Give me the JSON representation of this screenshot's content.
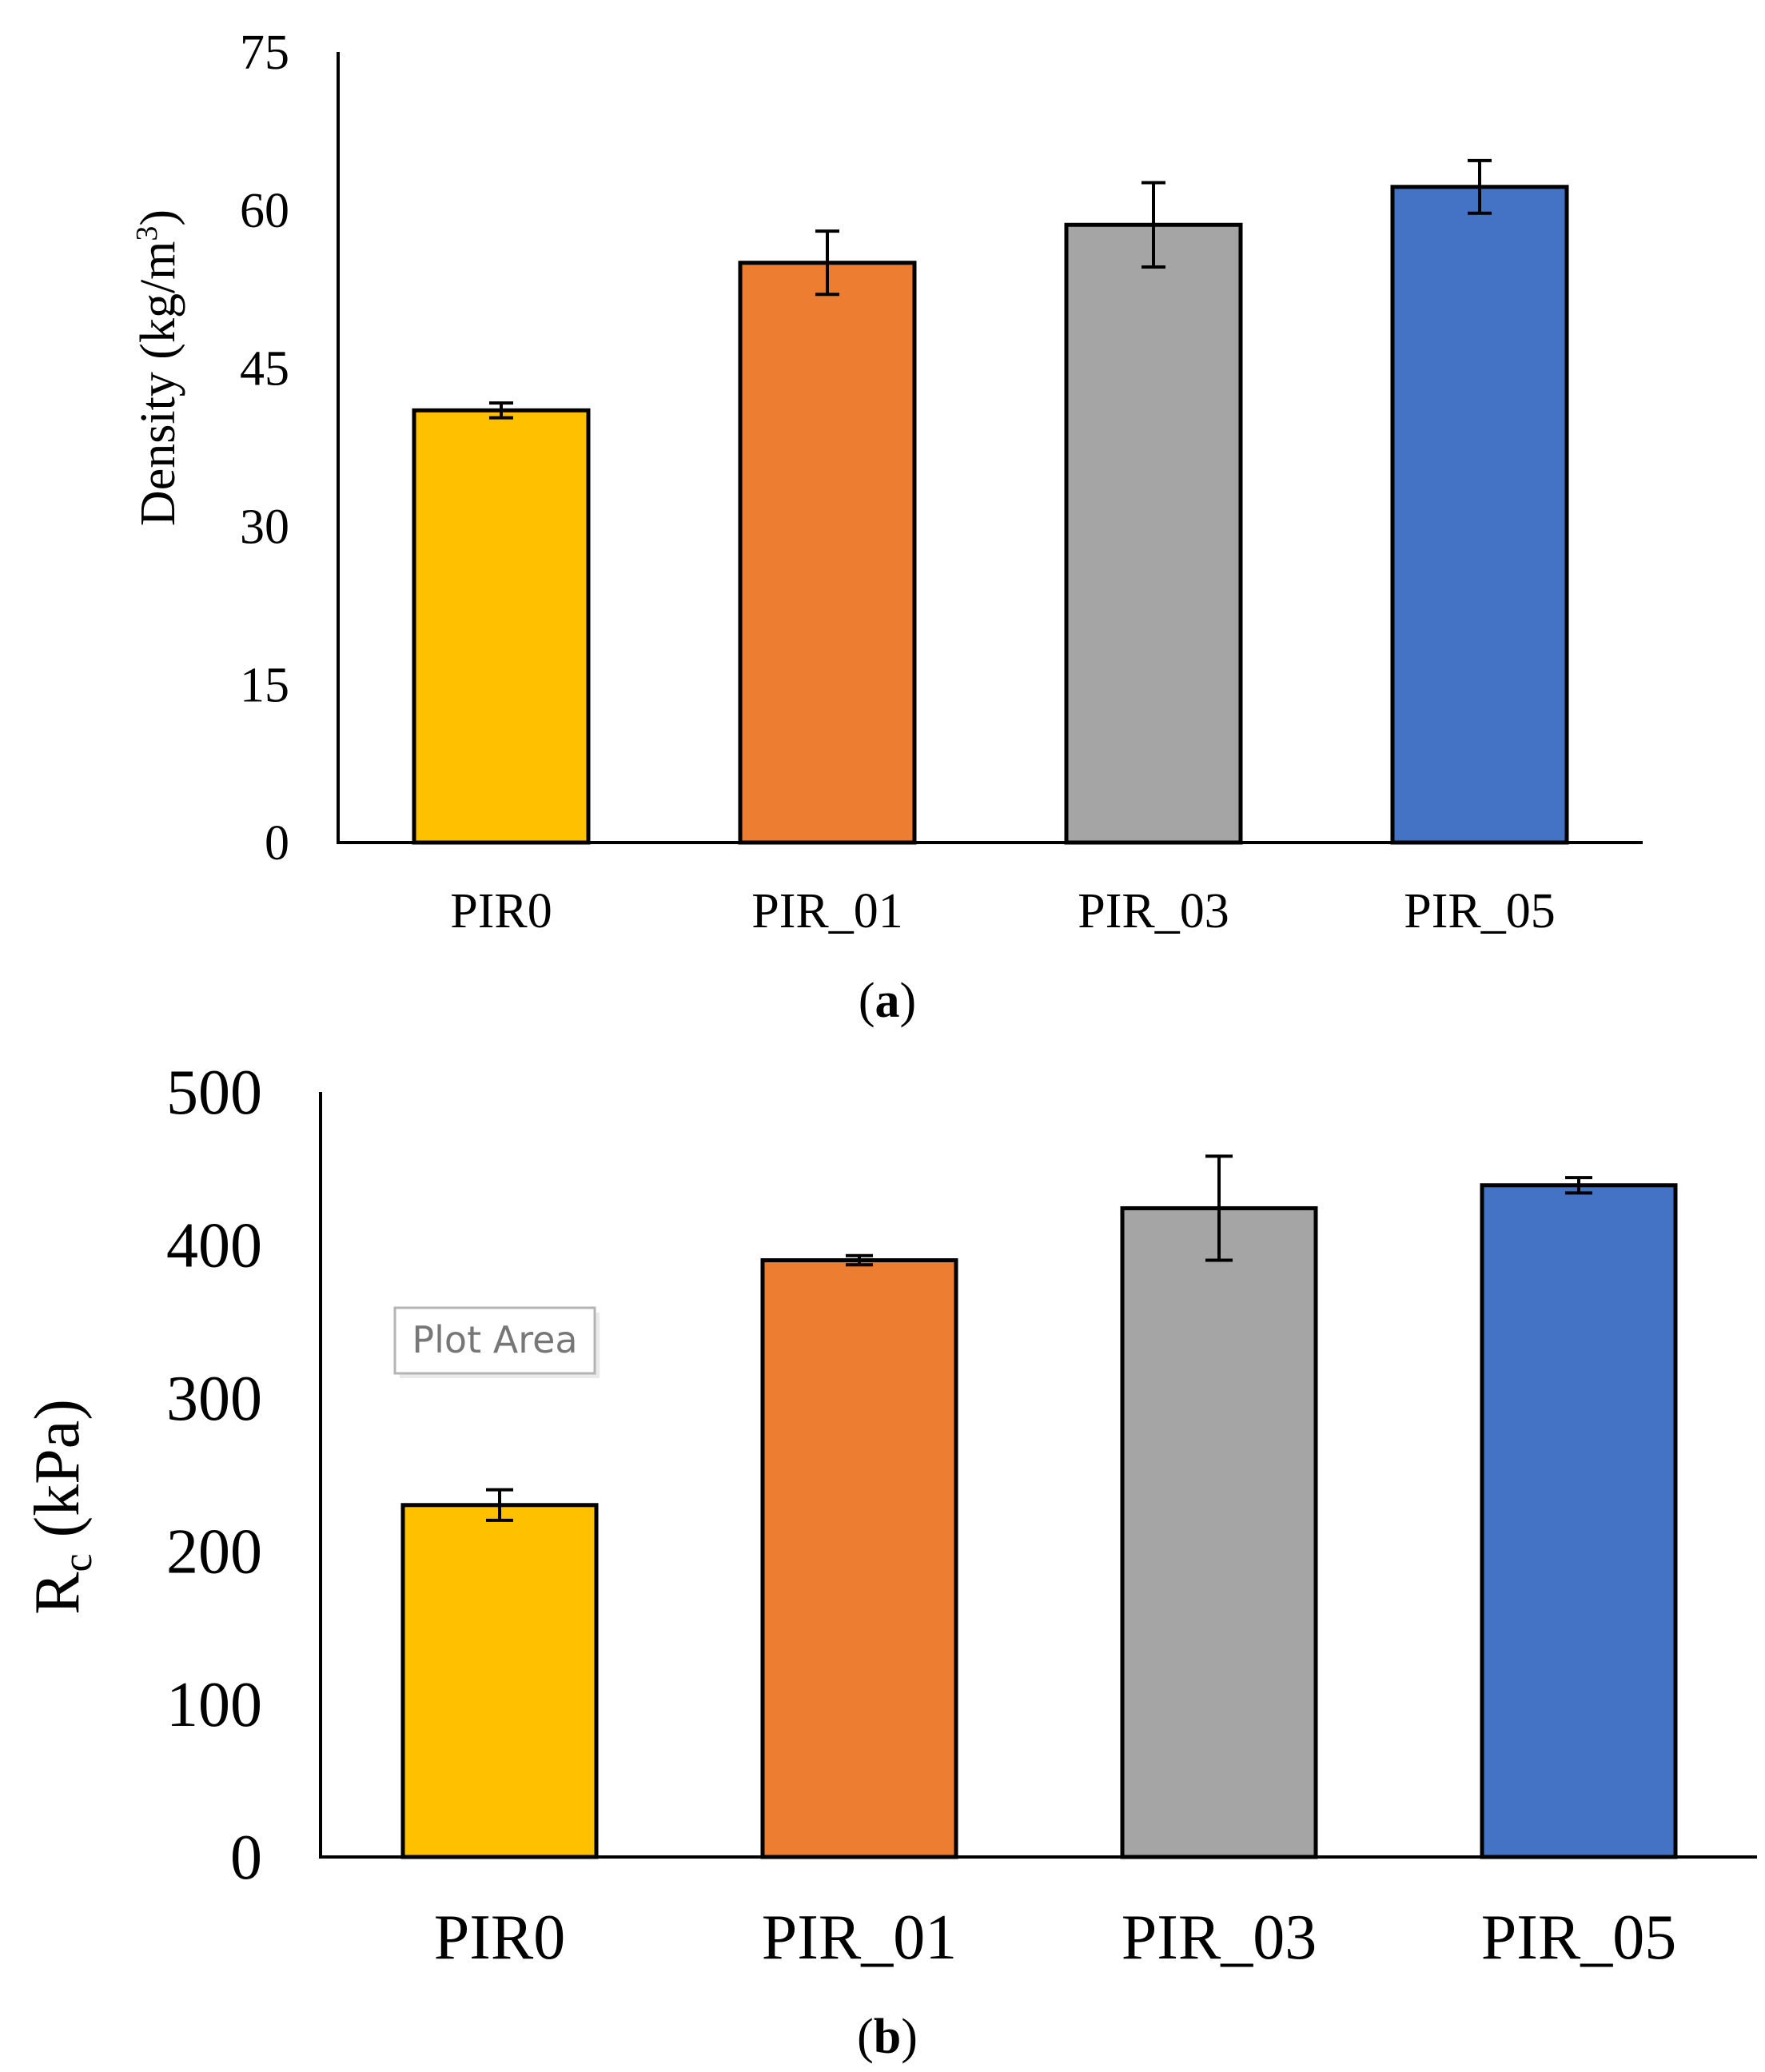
{
  "chart_data": [
    {
      "type": "bar",
      "panel_label": "a",
      "categories": [
        "PIR0",
        "PIR_01",
        "PIR_03",
        "PIR_05"
      ],
      "values": [
        41,
        55,
        58.6,
        62.2
      ],
      "errors": [
        0.7,
        3.0,
        4.0,
        2.5
      ],
      "colors": [
        "#FFC000",
        "#ED7D31",
        "#A5A5A5",
        "#4472C4"
      ],
      "ylabel_main": "Density (kg/m",
      "ylabel_sup": "3",
      "ylabel_close": ")",
      "ylim": [
        0,
        75
      ],
      "yticks": [
        "0",
        "15",
        "30",
        "45",
        "60",
        "75"
      ],
      "xlabel": "",
      "title": "",
      "grid": false
    },
    {
      "type": "bar",
      "panel_label": "b",
      "categories": [
        "PIR0",
        "PIR_01",
        "PIR_03",
        "PIR_05"
      ],
      "values": [
        230,
        390,
        424,
        439
      ],
      "errors": [
        10,
        3,
        34,
        5
      ],
      "colors": [
        "#FFC000",
        "#ED7D31",
        "#A5A5A5",
        "#4472C4"
      ],
      "ylabel_main": "R",
      "ylabel_sub": "c",
      "ylabel_unit": " (kPa)",
      "ylim": [
        0,
        500
      ],
      "yticks": [
        "0",
        "100",
        "200",
        "300",
        "400",
        "500"
      ],
      "xlabel": "",
      "title": "",
      "grid": false,
      "tooltip": "Plot Area"
    }
  ]
}
